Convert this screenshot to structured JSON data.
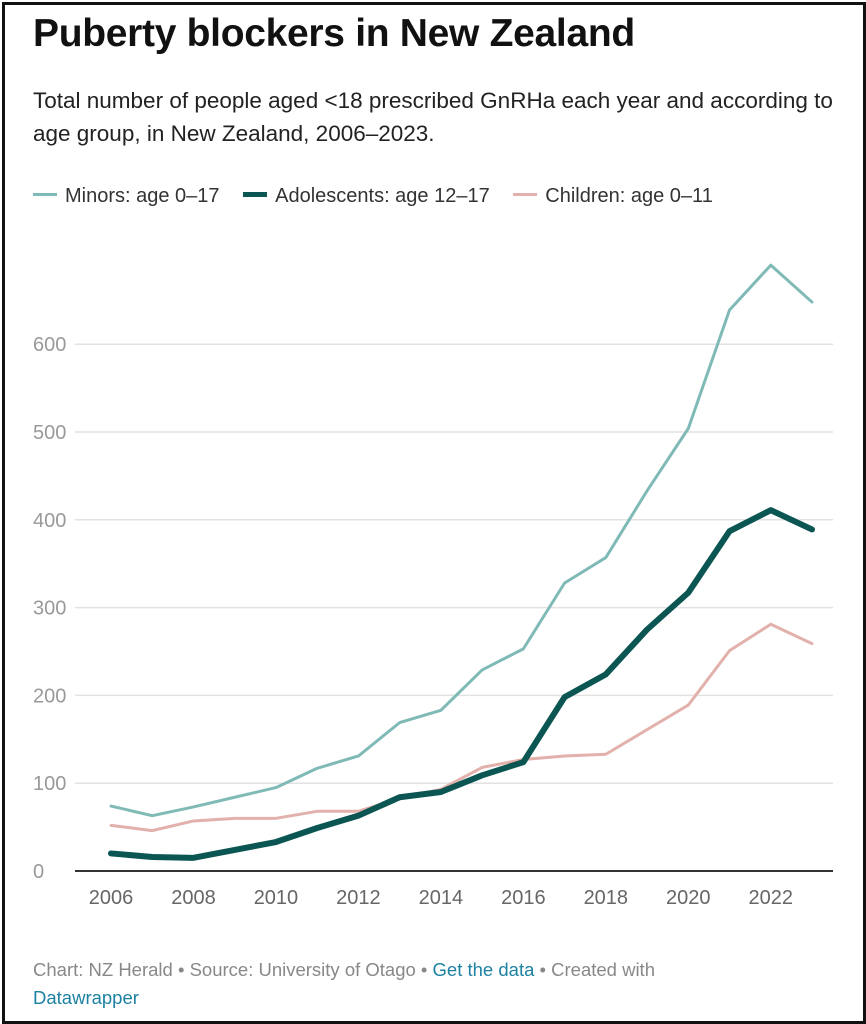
{
  "title": "Puberty blockers in New Zealand",
  "subtitle": "Total number of people aged <18 prescribed GnRHa each year and according to age group, in New Zealand, 2006–2023.",
  "footer": {
    "prefix": "Chart: NZ Herald • Source: University of Otago • ",
    "get_data": "Get the data",
    "middle": " • Created with ",
    "datawrapper": "Datawrapper"
  },
  "chart_data": {
    "type": "line",
    "title": "Puberty blockers in New Zealand",
    "xlabel": "",
    "ylabel": "",
    "x": [
      2006,
      2007,
      2008,
      2009,
      2010,
      2011,
      2012,
      2013,
      2014,
      2015,
      2016,
      2017,
      2018,
      2019,
      2020,
      2021,
      2022,
      2023
    ],
    "xticks": [
      2006,
      2008,
      2010,
      2012,
      2014,
      2016,
      2018,
      2020,
      2022
    ],
    "yticks": [
      0,
      100,
      200,
      300,
      400,
      500,
      600
    ],
    "xlim": [
      2006,
      2023
    ],
    "ylim": [
      0,
      700
    ],
    "grid": true,
    "legend": "top",
    "series": [
      {
        "name": "Minors: age 0–17",
        "color": "#7fbab6",
        "width": 3,
        "values": [
          74,
          63,
          73,
          84,
          95,
          117,
          131,
          169,
          183,
          229,
          253,
          328,
          357,
          433,
          504,
          639,
          690,
          648
        ]
      },
      {
        "name": "Adolescents: age 12–17",
        "color": "#0b5552",
        "width": 6,
        "values": [
          20,
          16,
          15,
          24,
          33,
          49,
          63,
          84,
          90,
          109,
          124,
          198,
          224,
          275,
          317,
          387,
          411,
          389
        ]
      },
      {
        "name": "Children: age 0–11",
        "color": "#e2b1ab",
        "width": 3,
        "values": [
          52,
          46,
          57,
          60,
          60,
          68,
          68,
          83,
          93,
          118,
          127,
          131,
          133,
          161,
          189,
          251,
          281,
          259
        ]
      }
    ]
  }
}
